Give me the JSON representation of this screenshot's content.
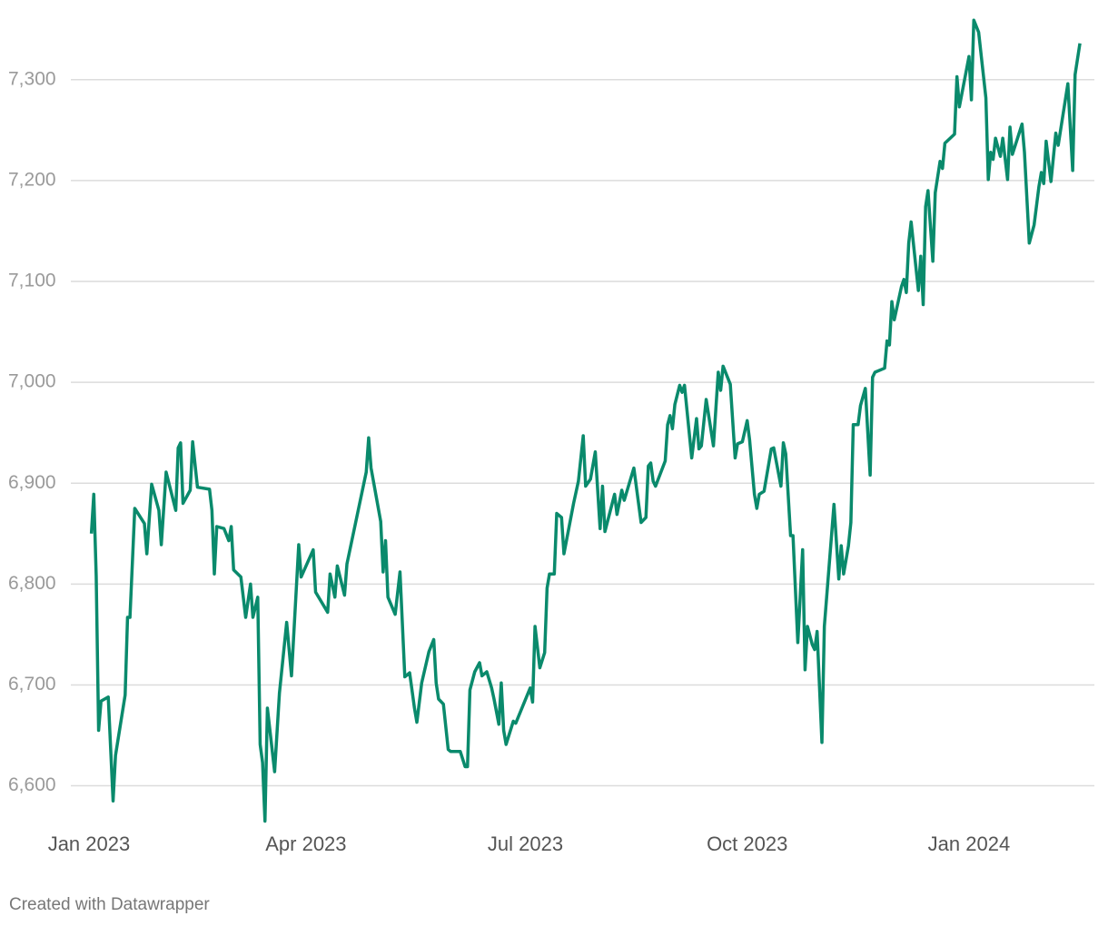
{
  "chart_data": {
    "type": "line",
    "color": "#0a8a6c",
    "grid": true,
    "credit": "Created with Datawrapper",
    "xlim": [
      -3,
      417
    ],
    "xticks": [
      {
        "value": 0,
        "label": "Jan 2023"
      },
      {
        "value": 90,
        "label": "Apr 2023"
      },
      {
        "value": 181,
        "label": "Jul 2023"
      },
      {
        "value": 273,
        "label": "Oct 2023"
      },
      {
        "value": 365,
        "label": "Jan 2024"
      }
    ],
    "ylim": [
      6560,
      7370
    ],
    "yticks": [
      {
        "value": 6600,
        "label": "6,600"
      },
      {
        "value": 6700,
        "label": "6,700"
      },
      {
        "value": 6800,
        "label": "6,800"
      },
      {
        "value": 6900,
        "label": "6,900"
      },
      {
        "value": 7000,
        "label": "7,000"
      },
      {
        "value": 7100,
        "label": "7,100"
      },
      {
        "value": 7200,
        "label": "7,200"
      },
      {
        "value": 7300,
        "label": "7,300"
      }
    ],
    "x": [
      1,
      2,
      3,
      4,
      5,
      8,
      10,
      11,
      15,
      16,
      17,
      19,
      23,
      24,
      26,
      29,
      30,
      32,
      36,
      37,
      38,
      39,
      42,
      43,
      45,
      50,
      51,
      52,
      53,
      56,
      58,
      59,
      60,
      63,
      65,
      67,
      68,
      70,
      71,
      72,
      73,
      74,
      77,
      79,
      82,
      84,
      87,
      88,
      93,
      94,
      99,
      100,
      102,
      103,
      106,
      107,
      115,
      116,
      117,
      121,
      122,
      123,
      124,
      127,
      129,
      131,
      133,
      135,
      136,
      138,
      141,
      143,
      144,
      145,
      147,
      149,
      150,
      154,
      156,
      157,
      158,
      160,
      162,
      163,
      165,
      167,
      168,
      170,
      171,
      172,
      173,
      176,
      177,
      183,
      184,
      185,
      187,
      189,
      190,
      191,
      193,
      194,
      196,
      197,
      201,
      203,
      205,
      206,
      208,
      210,
      212,
      213,
      214,
      218,
      219,
      221,
      222,
      226,
      229,
      231,
      232,
      233,
      234,
      235,
      239,
      240,
      241,
      242,
      243,
      245,
      246,
      247,
      250,
      252,
      253,
      254,
      256,
      259,
      261,
      262,
      263,
      266,
      268,
      269,
      271,
      273,
      274,
      276,
      277,
      278,
      280,
      282,
      283,
      284,
      287,
      288,
      289,
      291,
      292,
      294,
      296,
      297,
      298,
      300,
      301,
      302,
      304,
      305,
      309,
      311,
      312,
      313,
      315,
      316,
      317,
      319,
      320,
      322,
      324,
      325,
      326,
      330,
      331,
      332,
      333,
      334,
      337,
      338,
      339,
      340,
      341,
      344,
      345,
      346,
      347,
      348,
      350,
      351,
      353,
      354,
      355,
      359,
      360,
      361,
      365,
      366,
      367,
      369,
      372,
      373,
      374,
      375,
      376,
      378,
      379,
      381,
      382,
      383,
      387,
      388,
      390,
      392,
      394,
      395,
      396,
      397,
      399,
      401,
      402,
      406,
      408,
      409,
      411
    ],
    "values": [
      6850,
      6889,
      6808,
      6655,
      6684,
      6688,
      6585,
      6630,
      6690,
      6767,
      6767,
      6875,
      6860,
      6830,
      6899,
      6873,
      6839,
      6911,
      6873,
      6935,
      6940,
      6880,
      6893,
      6941,
      6896,
      6894,
      6873,
      6810,
      6857,
      6855,
      6843,
      6857,
      6814,
      6807,
      6767,
      6800,
      6767,
      6787,
      6641,
      6623,
      6565,
      6677,
      6614,
      6692,
      6762,
      6709,
      6839,
      6807,
      6834,
      6792,
      6772,
      6810,
      6787,
      6818,
      6789,
      6820,
      6911,
      6945,
      6915,
      6862,
      6812,
      6843,
      6787,
      6770,
      6812,
      6708,
      6712,
      6677,
      6663,
      6702,
      6733,
      6745,
      6702,
      6686,
      6681,
      6636,
      6634,
      6634,
      6619,
      6619,
      6695,
      6713,
      6722,
      6709,
      6713,
      6697,
      6686,
      6661,
      6702,
      6655,
      6641,
      6664,
      6662,
      6697,
      6683,
      6758,
      6717,
      6732,
      6796,
      6810,
      6810,
      6870,
      6866,
      6830,
      6880,
      6902,
      6947,
      6897,
      6904,
      6931,
      6855,
      6897,
      6852,
      6889,
      6869,
      6893,
      6883,
      6915,
      6861,
      6866,
      6917,
      6920,
      6902,
      6897,
      6922,
      6958,
      6967,
      6954,
      6978,
      6997,
      6990,
      6997,
      6925,
      6964,
      6934,
      6937,
      6983,
      6937,
      7010,
      6992,
      7016,
      6998,
      6925,
      6939,
      6941,
      6962,
      6943,
      6889,
      6875,
      6889,
      6892,
      6920,
      6934,
      6935,
      6897,
      6940,
      6929,
      6848,
      6848,
      6742,
      6834,
      6715,
      6758,
      6740,
      6735,
      6753,
      6643,
      6758,
      6879,
      6805,
      6838,
      6810,
      6838,
      6861,
      6958,
      6958,
      6977,
      6994,
      6908,
      7005,
      7010,
      7014,
      7041,
      7037,
      7080,
      7062,
      7095,
      7102,
      7089,
      7138,
      7159,
      7091,
      7125,
      7077,
      7174,
      7190,
      7120,
      7188,
      7219,
      7212,
      7237,
      7246,
      7303,
      7273,
      7323,
      7280,
      7359,
      7347,
      7282,
      7201,
      7228,
      7221,
      7242,
      7224,
      7242,
      7201,
      7253,
      7226,
      7256,
      7228,
      7138,
      7156,
      7194,
      7208,
      7197,
      7239,
      7199,
      7247,
      7235,
      7296,
      7210,
      7305,
      7336
    ]
  }
}
